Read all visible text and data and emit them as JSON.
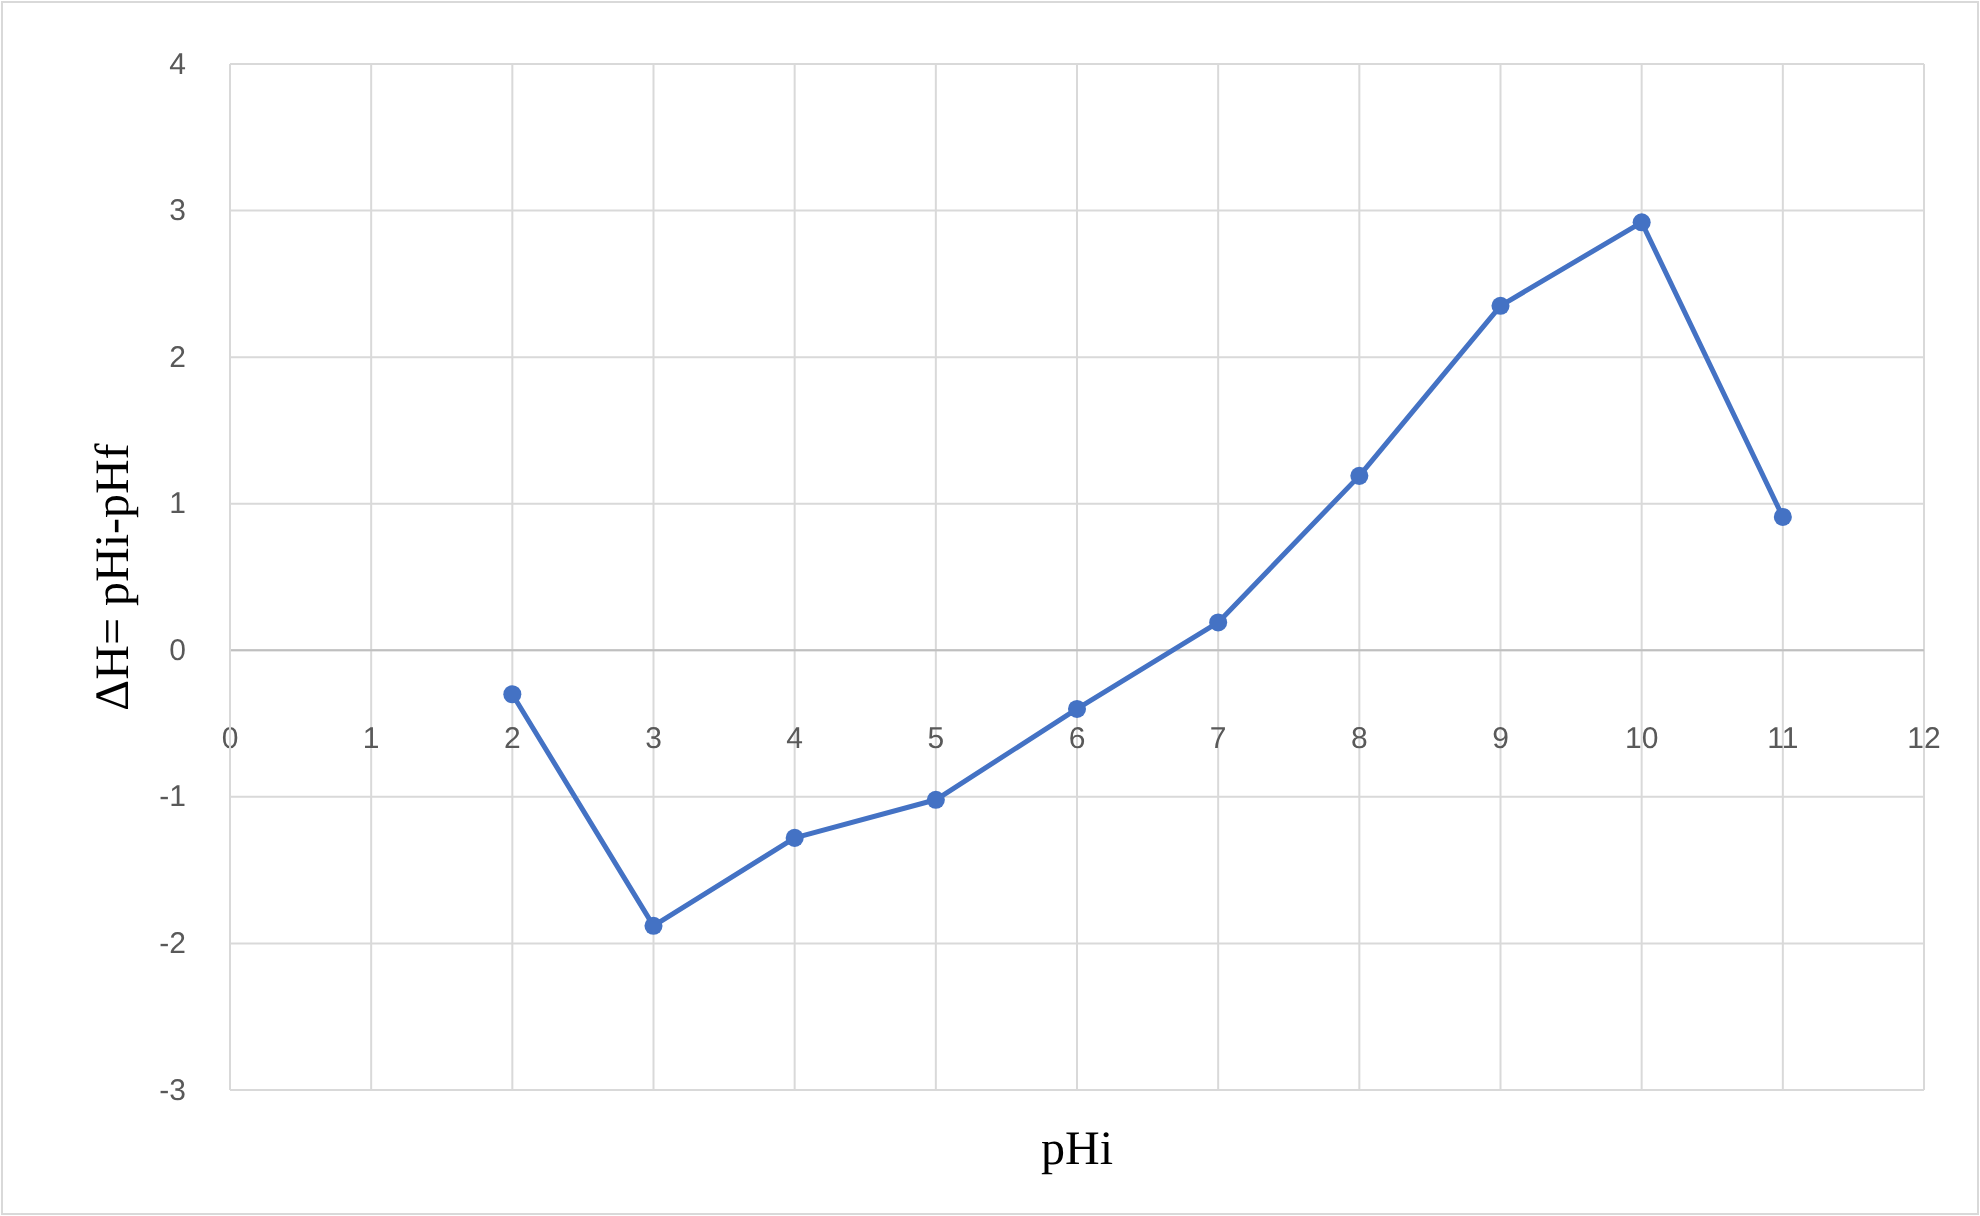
{
  "chart_data": {
    "type": "line",
    "xlabel": "pHi",
    "ylabel": "ΔH= pHi-pHf",
    "x": [
      2,
      3,
      4,
      5,
      6,
      7,
      8,
      9,
      10,
      11
    ],
    "series": [
      {
        "color": "#4472c4",
        "values": [
          -0.3,
          -1.88,
          -1.28,
          -1.02,
          -0.4,
          0.19,
          1.19,
          2.35,
          2.92,
          0.91
        ]
      }
    ],
    "xlim": [
      0,
      12
    ],
    "xticks": [
      0,
      1,
      2,
      3,
      4,
      5,
      6,
      7,
      8,
      9,
      10,
      11,
      12
    ],
    "ylim": [
      -3,
      4
    ],
    "yticks": [
      -3,
      -2,
      -1,
      0,
      1,
      2,
      3,
      4
    ],
    "grid": true,
    "marker": "circle",
    "line_style": "solid"
  }
}
